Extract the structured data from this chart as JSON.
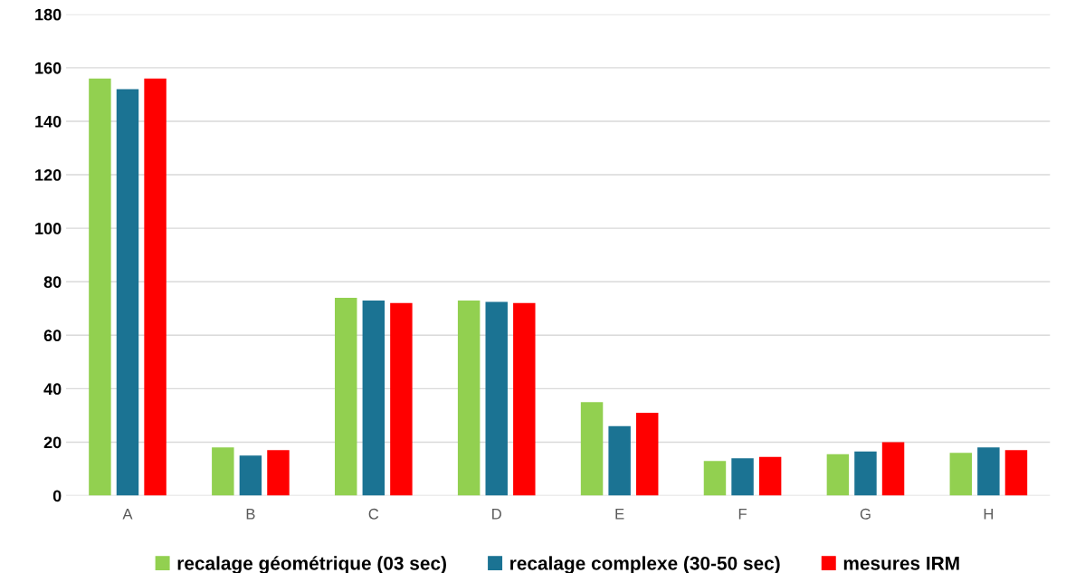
{
  "chart_data": {
    "type": "bar",
    "categories": [
      "A",
      "B",
      "C",
      "D",
      "E",
      "F",
      "G",
      "H"
    ],
    "series": [
      {
        "name": "recalage géométrique (03 sec)",
        "color": "#92d050",
        "values": [
          156,
          18,
          74,
          73,
          35,
          13,
          15.5,
          16
        ]
      },
      {
        "name": "recalage complexe (30-50 sec)",
        "color": "#1b7393",
        "values": [
          152,
          15,
          73,
          72.5,
          26,
          14,
          16.5,
          18
        ]
      },
      {
        "name": "mesures IRM",
        "color": "#ff0000",
        "values": [
          156,
          17,
          72,
          72,
          31,
          14.5,
          20,
          17
        ]
      }
    ],
    "ylim": [
      0,
      180
    ],
    "yticks": [
      0,
      20,
      40,
      60,
      80,
      100,
      120,
      140,
      160,
      180
    ],
    "grid": "y",
    "legend": "bottom"
  }
}
